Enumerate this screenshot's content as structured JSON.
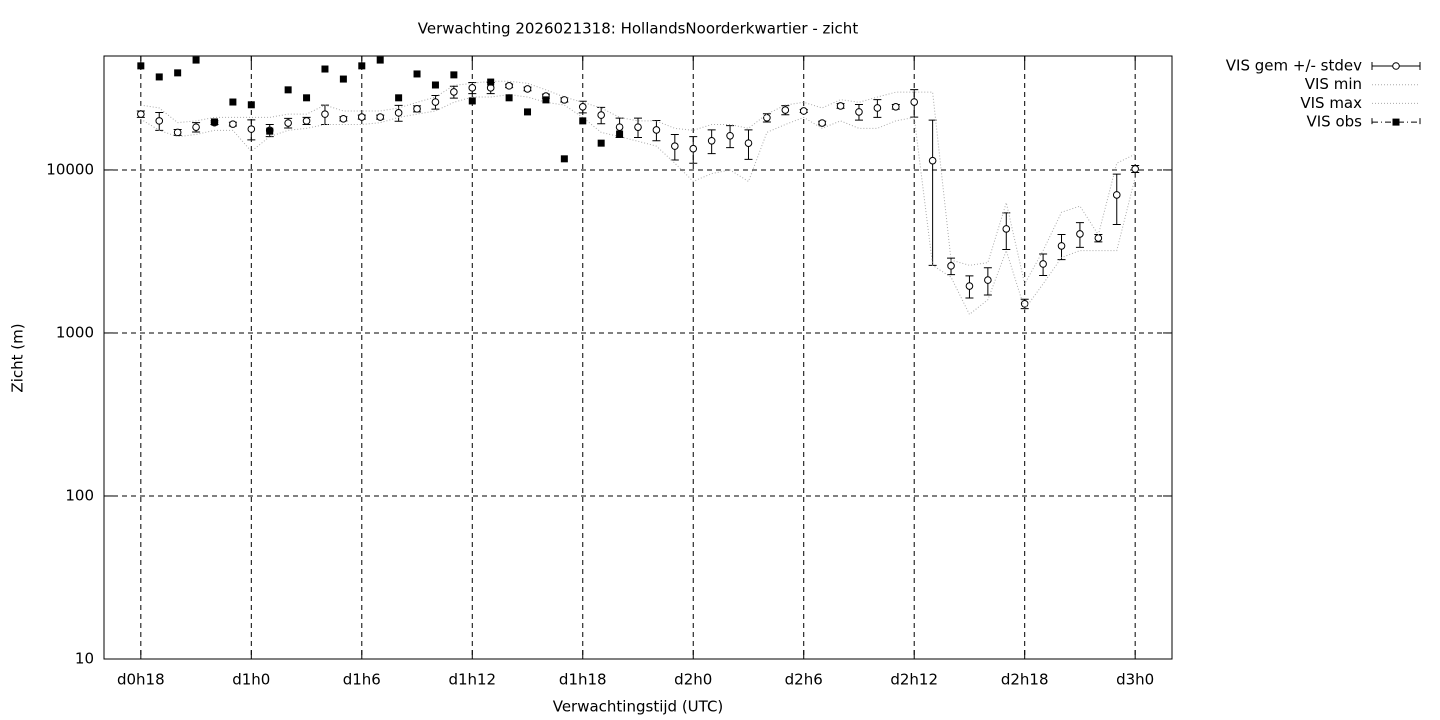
{
  "chart_data": {
    "type": "line",
    "title": "Verwachting 2026021318: HollandsNoorderkwartier - zicht",
    "xlabel": "Verwachtingstijd (UTC)",
    "ylabel": "Zicht (m)",
    "x": [
      18,
      19,
      20,
      21,
      22,
      23,
      24,
      25,
      26,
      27,
      28,
      29,
      30,
      31,
      32,
      33,
      34,
      35,
      36,
      37,
      38,
      39,
      40,
      41,
      42,
      43,
      44,
      45,
      46,
      47,
      48,
      49,
      50,
      51,
      52,
      53,
      54,
      55,
      56,
      57,
      58,
      59,
      60,
      61,
      62,
      63,
      64,
      65,
      66,
      67,
      68,
      69,
      70,
      71,
      72
    ],
    "xlim": [
      16,
      74
    ],
    "xticks": [
      {
        "value": 18,
        "label": "d0h18"
      },
      {
        "value": 24,
        "label": "d1h0"
      },
      {
        "value": 30,
        "label": "d1h6"
      },
      {
        "value": 36,
        "label": "d1h12"
      },
      {
        "value": 42,
        "label": "d1h18"
      },
      {
        "value": 48,
        "label": "d2h0"
      },
      {
        "value": 54,
        "label": "d2h6"
      },
      {
        "value": 60,
        "label": "d2h12"
      },
      {
        "value": 66,
        "label": "d2h18"
      },
      {
        "value": 72,
        "label": "d3h0"
      }
    ],
    "ylim": [
      10,
      50000
    ],
    "yticks": [
      10,
      100,
      1000,
      10000
    ],
    "log_y": true,
    "grid": true,
    "legend": "outside-top-right",
    "series": [
      {
        "name": "VIS gem +/- stdev",
        "color": "#000000",
        "marker": "open-circle",
        "values": [
          22000,
          20000,
          17000,
          18300,
          19500,
          19100,
          17800,
          17500,
          19400,
          20000,
          22000,
          20600,
          21100,
          21100,
          22400,
          23700,
          26100,
          30100,
          31900,
          31900,
          32800,
          31400,
          28400,
          26900,
          24400,
          21700,
          18300,
          18300,
          17600,
          14000,
          13500,
          15100,
          16200,
          14600,
          20900,
          23300,
          23000,
          19400,
          24700,
          22700,
          24000,
          24400,
          26100,
          11400,
          2580,
          1940,
          2110,
          4350,
          1510,
          2650,
          3420,
          4050,
          3820,
          7030,
          10140
        ],
        "errors": [
          1000,
          2500,
          700,
          1200,
          500,
          500,
          2500,
          1500,
          1300,
          1000,
          3000,
          600,
          600,
          600,
          2500,
          1000,
          2500,
          2500,
          2500,
          2500,
          800,
          800,
          800,
          800,
          2000,
          2500,
          2500,
          2500,
          2500,
          2500,
          2500,
          2500,
          2500,
          3000,
          1200,
          1500,
          500,
          500,
          800,
          2500,
          3000,
          800,
          5000,
          8800,
          300,
          300,
          400,
          1100,
          100,
          400,
          600,
          700,
          200,
          2400,
          500
        ]
      },
      {
        "name": "VIS min",
        "color": "#aaaaaa",
        "marker": "dotted",
        "values": [
          20500,
          17500,
          16000,
          16500,
          17500,
          17500,
          13000,
          16000,
          17500,
          18000,
          19000,
          19000,
          19000,
          19500,
          21000,
          22000,
          23000,
          26000,
          28000,
          28000,
          29000,
          28000,
          26000,
          25000,
          21000,
          17000,
          16000,
          15000,
          14000,
          11000,
          8500,
          9500,
          10000,
          8500,
          17000,
          19000,
          21000,
          18000,
          20000,
          18000,
          18000,
          20000,
          21000,
          2600,
          2200,
          1300,
          1600,
          3200,
          1400,
          2000,
          2900,
          3200,
          3200,
          3200,
          9000
        ]
      },
      {
        "name": "VIS max",
        "color": "#aaaaaa",
        "marker": "dotted",
        "values": [
          25000,
          24000,
          19500,
          20000,
          21000,
          21000,
          21000,
          21000,
          22000,
          22000,
          25000,
          23000,
          23000,
          23000,
          24000,
          26000,
          28000,
          33000,
          34000,
          35000,
          35000,
          34000,
          31000,
          28000,
          26000,
          24000,
          21000,
          20000,
          20000,
          18000,
          17500,
          19000,
          19000,
          18000,
          22000,
          25000,
          26000,
          24000,
          27000,
          26000,
          28000,
          30000,
          30000,
          30000,
          2800,
          2600,
          2700,
          6300,
          2000,
          3200,
          5500,
          6000,
          4000,
          11000,
          12500
        ]
      },
      {
        "name": "VIS obs",
        "color": "#000000",
        "marker": "filled-square",
        "values": [
          43500,
          37200,
          39400,
          47200,
          19700,
          26100,
          25100,
          17300,
          31000,
          27700,
          41600,
          36100,
          43500,
          47200,
          27700,
          38800,
          33200,
          38300,
          26500,
          34600,
          27700,
          22700,
          26900,
          11700,
          20000,
          14600,
          16600,
          null,
          null,
          null,
          null,
          null,
          null,
          null,
          null,
          null,
          null,
          null,
          null,
          null,
          null,
          null,
          null,
          null,
          null,
          null,
          null,
          null,
          null,
          null,
          null,
          null,
          null,
          null,
          null
        ]
      }
    ]
  }
}
